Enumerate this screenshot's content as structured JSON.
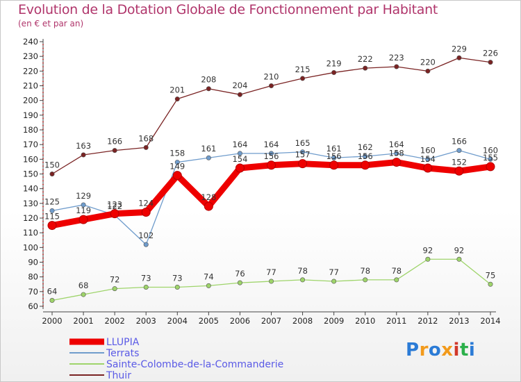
{
  "header": {
    "title": "Evolution de la Dotation Globale de Fonctionnement par Habitant",
    "subtitle": "(en € et par an)"
  },
  "logo": {
    "text": "Proxiti"
  },
  "chart_data": {
    "type": "line",
    "title": "Evolution de la Dotation Globale de Fonctionnement par Habitant",
    "subtitle": "(en € et par an)",
    "x": [
      "2000",
      "2001",
      "2002",
      "2003",
      "2004",
      "2005",
      "2006",
      "2007",
      "2008",
      "2009",
      "2010",
      "2011",
      "2012",
      "2013",
      "2014"
    ],
    "ylim": [
      60,
      240
    ],
    "yticks": [
      60,
      70,
      80,
      90,
      100,
      110,
      120,
      130,
      140,
      150,
      160,
      170,
      180,
      190,
      200,
      210,
      220,
      230,
      240
    ],
    "grid": false,
    "legend_position": "bottom-left",
    "series": [
      {
        "name": "Thuir",
        "color": "#7a2323",
        "values": [
          150,
          163,
          166,
          168,
          201,
          208,
          204,
          210,
          215,
          219,
          222,
          223,
          220,
          229,
          226
        ]
      },
      {
        "name": "Sainte-Colombe-de-la-Commanderie",
        "color": "#9ed46a",
        "values": [
          64,
          68,
          72,
          73,
          73,
          74,
          76,
          77,
          78,
          77,
          78,
          78,
          92,
          92,
          75
        ]
      },
      {
        "name": "Terrats",
        "color": "#6f9ccc",
        "values": [
          125,
          129,
          122,
          102,
          158,
          161,
          164,
          164,
          165,
          161,
          162,
          164,
          160,
          166,
          160
        ]
      },
      {
        "name": "LLUPIA",
        "color": "#ee0000",
        "values": [
          115,
          119,
          123,
          124,
          149,
          128,
          154,
          156,
          157,
          156,
          156,
          158,
          154,
          152,
          155
        ]
      }
    ],
    "legend": [
      "LLUPIA",
      "Terrats",
      "Sainte-Colombe-de-la-Commanderie",
      "Thuir"
    ]
  }
}
